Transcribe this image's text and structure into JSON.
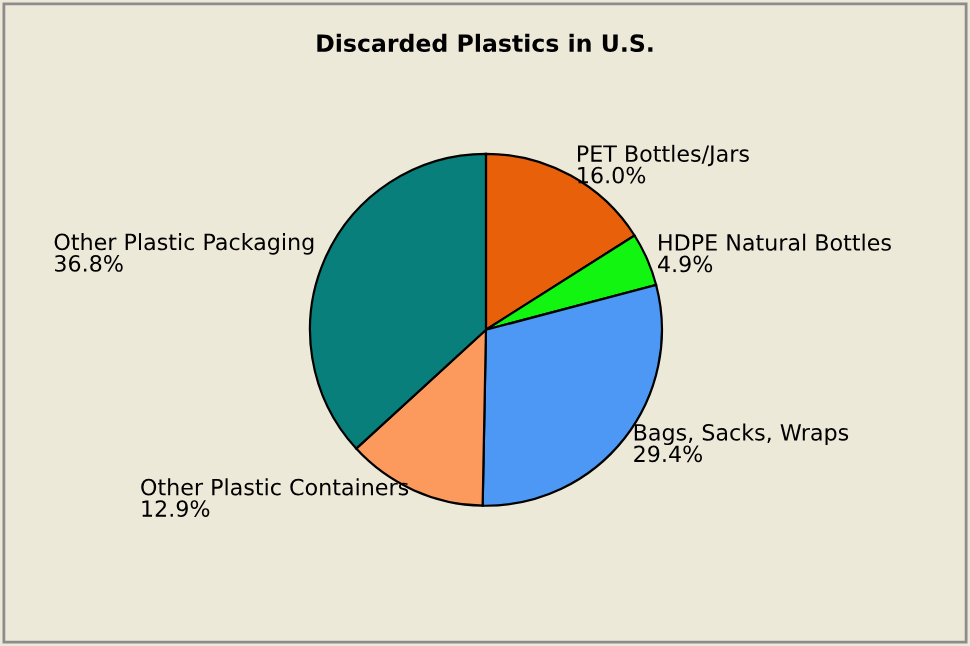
{
  "chart_data": {
    "type": "pie",
    "title": "Discarded Plastics in U.S.",
    "categories": [
      "PET Bottles/Jars",
      "HDPE Natural Bottles",
      "Bags, Sacks, Wraps",
      "Other Plastic Containers",
      "Other Plastic Packaging"
    ],
    "values": [
      16.0,
      4.9,
      29.4,
      12.9,
      36.8
    ],
    "colors": [
      "#e8600a",
      "#11f511",
      "#4c98f4",
      "#fc9a5e",
      "#087f7b"
    ],
    "value_labels": [
      "16.0%",
      "4.9%",
      "29.4%",
      "12.9%",
      "36.8%"
    ]
  }
}
